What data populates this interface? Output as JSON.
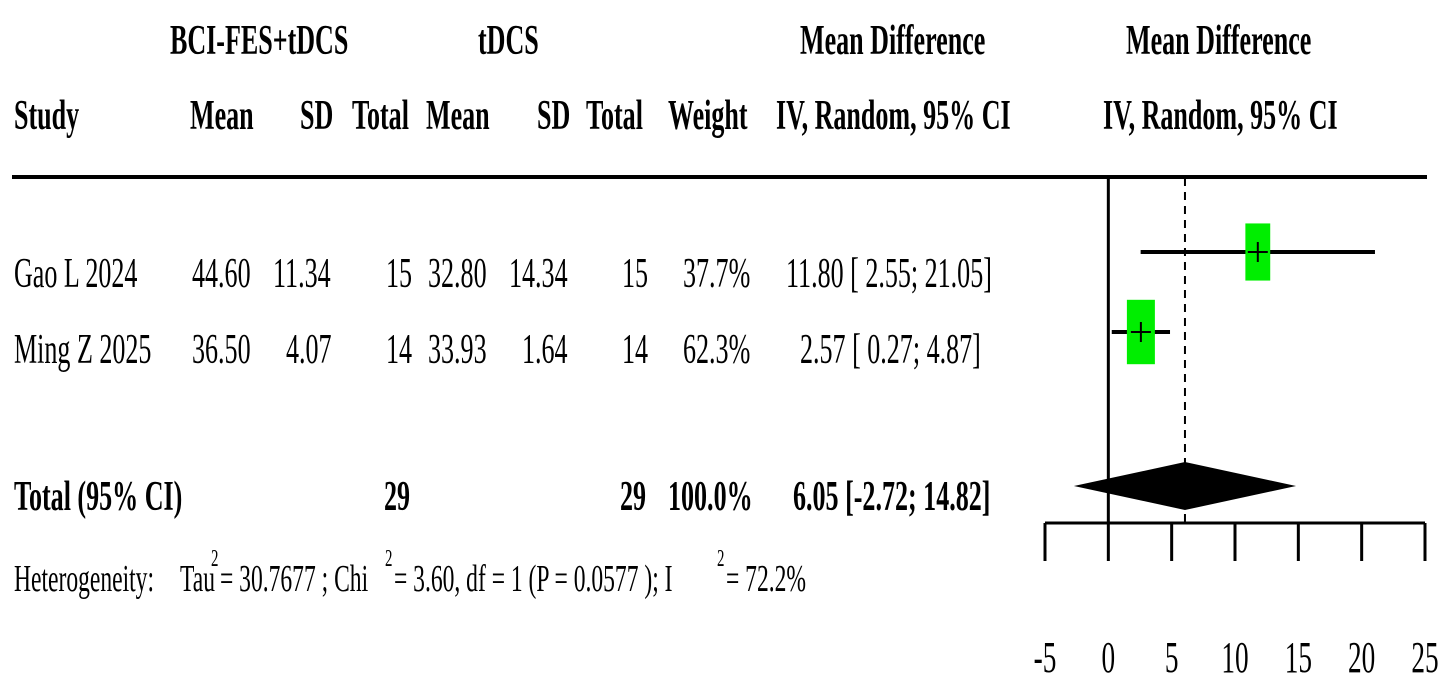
{
  "header": {
    "group1": "BCI-FES+tDCS",
    "group2": "tDCS",
    "md_col": "Mean Difference",
    "md_plot": "Mean Difference",
    "study": "Study",
    "mean1": "Mean",
    "sd1": "SD",
    "total1": "Total",
    "mean2": "Mean",
    "sd2": "SD",
    "total2": "Total",
    "weight": "Weight",
    "method_col": "IV, Random, 95% CI",
    "method_plot": "IV, Random, 95% CI"
  },
  "studies": [
    {
      "name": "Gao L 2024",
      "mean1": "44.60",
      "sd1": "11.34",
      "n1": "15",
      "mean2": "32.80",
      "sd2": "14.34",
      "n2": "15",
      "weight": "37.7%",
      "ci_text": "11.80 [ 2.55; 21.05]"
    },
    {
      "name": "Ming Z 2025",
      "mean1": "36.50",
      "sd1": "4.07",
      "n1": "14",
      "mean2": "33.93",
      "sd2": "1.64",
      "n2": "14",
      "weight": "62.3%",
      "ci_text": "2.57 [ 0.27; 4.87]"
    }
  ],
  "total": {
    "label": "Total (95% CI)",
    "n1": "29",
    "n2": "29",
    "weight": "100.0%",
    "ci_text": "6.05 [-2.72; 14.82]"
  },
  "heterogeneity": {
    "label": "Heterogeneity:",
    "tau_part": "Tau",
    "tau_value": " = 30.7677 ; Chi",
    "chi_value": " = 3.60, df = 1  (P = 0.0577 ); I",
    "i2_value": " = 72.2%",
    "sup": "2"
  },
  "chart_data": {
    "type": "forest",
    "xlim": [
      -5,
      25
    ],
    "x_ticks": [
      -5,
      0,
      5,
      10,
      15,
      20,
      25
    ],
    "null_line": 0,
    "summary_line": 6.05,
    "box_color": "#00ee00",
    "points": [
      {
        "study": "Gao L 2024",
        "md": 11.8,
        "lower": 2.55,
        "upper": 21.05,
        "weight": 37.7
      },
      {
        "study": "Ming Z 2025",
        "md": 2.57,
        "lower": 0.27,
        "upper": 4.87,
        "weight": 62.3
      }
    ],
    "summary": {
      "md": 6.05,
      "lower": -2.72,
      "upper": 14.82
    }
  }
}
